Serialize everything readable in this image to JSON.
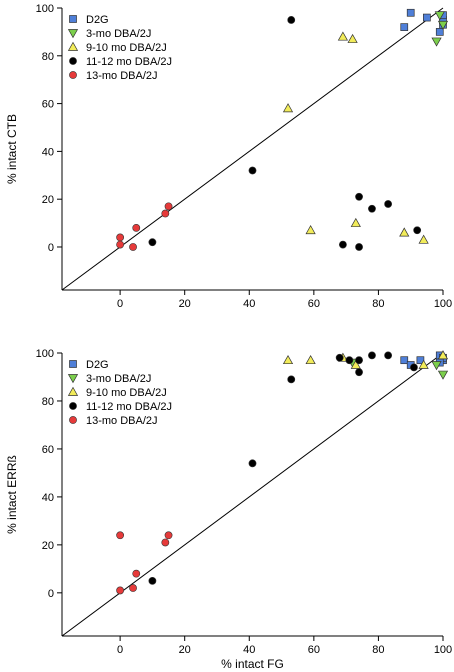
{
  "chart_data": [
    {
      "type": "scatter",
      "xlabel": "",
      "ylabel": "% intact CTB",
      "xlim": [
        -18,
        100
      ],
      "ylim": [
        -18,
        100
      ],
      "xticks": [
        0,
        20,
        40,
        60,
        80,
        100
      ],
      "yticks": [
        0,
        20,
        40,
        60,
        80,
        100
      ],
      "identity_line": true,
      "legend_position": "top-left",
      "series": [
        {
          "name": "D2G",
          "marker": "square",
          "color": "#4f7fd8",
          "points": [
            [
              88,
              92
            ],
            [
              90,
              98
            ],
            [
              95,
              96
            ],
            [
              99,
              90
            ],
            [
              100,
              93
            ],
            [
              100,
              95
            ],
            [
              100,
              97
            ]
          ]
        },
        {
          "name": "3-mo DBA/2J",
          "marker": "triangle-down",
          "color": "#7ccf4c",
          "points": [
            [
              98,
              86
            ],
            [
              99,
              97
            ],
            [
              100,
              93
            ]
          ]
        },
        {
          "name": "9-10 mo DBA/2J",
          "marker": "triangle-up",
          "color": "#f2ec5a",
          "points": [
            [
              52,
              58
            ],
            [
              69,
              88
            ],
            [
              72,
              87
            ],
            [
              59,
              7
            ],
            [
              73,
              10
            ],
            [
              88,
              6
            ],
            [
              94,
              3
            ]
          ]
        },
        {
          "name": "11-12 mo DBA/2J",
          "marker": "circle",
          "color": "#000000",
          "points": [
            [
              53,
              95
            ],
            [
              41,
              32
            ],
            [
              10,
              2
            ],
            [
              69,
              1
            ],
            [
              74,
              0
            ],
            [
              74,
              21
            ],
            [
              78,
              16
            ],
            [
              83,
              18
            ],
            [
              92,
              7
            ]
          ]
        },
        {
          "name": "13-mo DBA/2J",
          "marker": "circle",
          "color": "#e63a3a",
          "points": [
            [
              0,
              4
            ],
            [
              0,
              1
            ],
            [
              4,
              0
            ],
            [
              5,
              8
            ],
            [
              14,
              14
            ],
            [
              15,
              17
            ]
          ]
        }
      ]
    },
    {
      "type": "scatter",
      "xlabel": "% intact FG",
      "ylabel": "% intact ERRß",
      "xlim": [
        -18,
        100
      ],
      "ylim": [
        -18,
        100
      ],
      "xticks": [
        0,
        20,
        40,
        60,
        80,
        100
      ],
      "yticks": [
        0,
        20,
        40,
        60,
        80,
        100
      ],
      "identity_line": true,
      "legend_position": "top-left",
      "series": [
        {
          "name": "D2G",
          "marker": "square",
          "color": "#4f7fd8",
          "points": [
            [
              88,
              97
            ],
            [
              90,
              95
            ],
            [
              93,
              97
            ],
            [
              99,
              99
            ],
            [
              100,
              97
            ],
            [
              100,
              98
            ],
            [
              99,
              96
            ]
          ]
        },
        {
          "name": "3-mo DBA/2J",
          "marker": "triangle-down",
          "color": "#7ccf4c",
          "points": [
            [
              98,
              95
            ],
            [
              100,
              91
            ],
            [
              72,
              96
            ]
          ]
        },
        {
          "name": "9-10 mo DBA/2J",
          "marker": "triangle-up",
          "color": "#f2ec5a",
          "points": [
            [
              52,
              97
            ],
            [
              59,
              97
            ],
            [
              69,
              98
            ],
            [
              73,
              95
            ],
            [
              94,
              95
            ],
            [
              100,
              99
            ]
          ]
        },
        {
          "name": "11-12 mo DBA/2J",
          "marker": "circle",
          "color": "#000000",
          "points": [
            [
              53,
              89
            ],
            [
              41,
              54
            ],
            [
              10,
              5
            ],
            [
              68,
              98
            ],
            [
              71,
              97
            ],
            [
              74,
              97
            ],
            [
              74,
              92
            ],
            [
              78,
              99
            ],
            [
              83,
              99
            ],
            [
              91,
              94
            ]
          ]
        },
        {
          "name": "13-mo DBA/2J",
          "marker": "circle",
          "color": "#e63a3a",
          "points": [
            [
              0,
              24
            ],
            [
              0,
              1
            ],
            [
              4,
              2
            ],
            [
              5,
              8
            ],
            [
              14,
              21
            ],
            [
              15,
              24
            ]
          ]
        }
      ]
    }
  ]
}
